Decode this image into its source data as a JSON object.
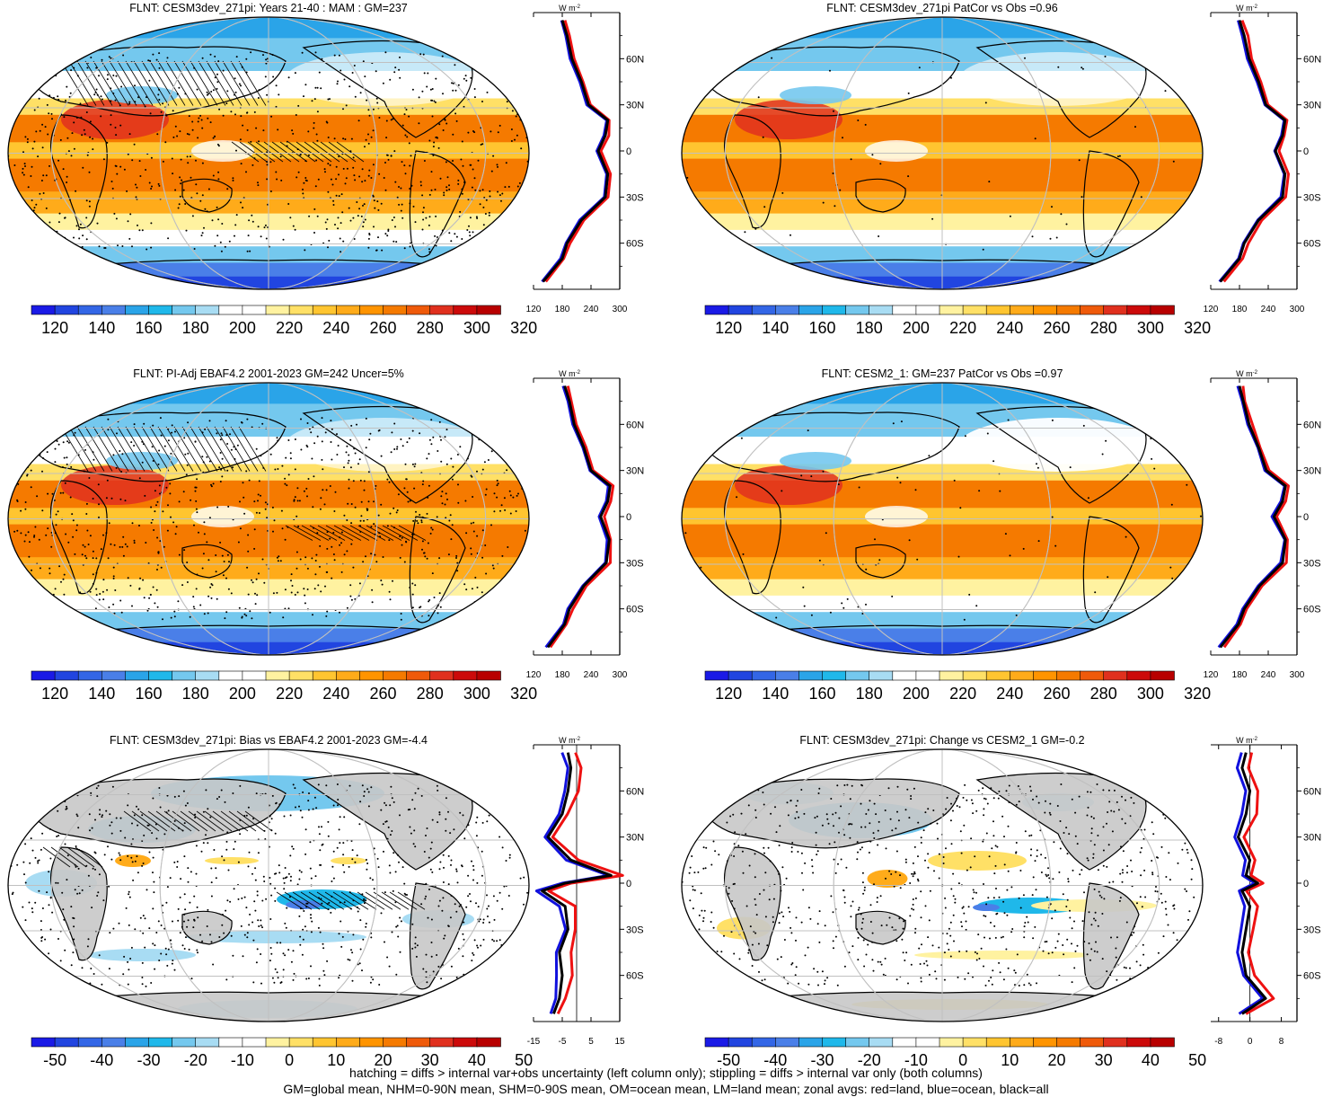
{
  "panels": [
    {
      "title": "FLNT: CESM3dev_271pi: Years 21-40 : MAM : GM=237",
      "colorbar": {
        "ticks": [
          "120",
          "140",
          "160",
          "180",
          "200",
          "220",
          "240",
          "260",
          "280",
          "300",
          "320"
        ],
        "kind": "abs"
      },
      "zonal": {
        "unit": "W m",
        "unit_exp": "-2",
        "x_ticks": [
          "120",
          "180",
          "240",
          "300"
        ],
        "lat_labels": [
          "60N",
          "30N",
          "0",
          "30S",
          "60S"
        ],
        "kind": "abs"
      }
    },
    {
      "title": "FLNT: CESM3dev_271pi PatCor vs Obs =0.96",
      "colorbar": {
        "ticks": [
          "120",
          "140",
          "160",
          "180",
          "200",
          "220",
          "240",
          "260",
          "280",
          "300",
          "320"
        ],
        "kind": "abs"
      },
      "zonal": {
        "unit": "W m",
        "unit_exp": "-2",
        "x_ticks": [
          "120",
          "180",
          "240",
          "300"
        ],
        "lat_labels": [
          "60N",
          "30N",
          "0",
          "30S",
          "60S"
        ],
        "kind": "abs"
      }
    },
    {
      "title": "FLNT: PI-Adj EBAF4.2 2001-2023 GM=242 Uncer=5%",
      "colorbar": {
        "ticks": [
          "120",
          "140",
          "160",
          "180",
          "200",
          "220",
          "240",
          "260",
          "280",
          "300",
          "320"
        ],
        "kind": "abs"
      },
      "zonal": {
        "unit": "W m",
        "unit_exp": "-2",
        "x_ticks": [
          "120",
          "180",
          "240",
          "300"
        ],
        "lat_labels": [
          "60N",
          "30N",
          "0",
          "30S",
          "60S"
        ],
        "kind": "abs"
      }
    },
    {
      "title": "FLNT: CESM2_1: GM=237 PatCor vs Obs =0.97",
      "colorbar": {
        "ticks": [
          "120",
          "140",
          "160",
          "180",
          "200",
          "220",
          "240",
          "260",
          "280",
          "300",
          "320"
        ],
        "kind": "abs"
      },
      "zonal": {
        "unit": "W m",
        "unit_exp": "-2",
        "x_ticks": [
          "120",
          "180",
          "240",
          "300"
        ],
        "lat_labels": [
          "60N",
          "30N",
          "0",
          "30S",
          "60S"
        ],
        "kind": "abs"
      }
    },
    {
      "title": "FLNT: CESM3dev_271pi: Bias vs EBAF4.2 2001-2023 GM=-4.4",
      "colorbar": {
        "ticks": [
          "-50",
          "-40",
          "-30",
          "-20",
          "-10",
          "0",
          "10",
          "20",
          "30",
          "40",
          "50"
        ],
        "kind": "diff"
      },
      "zonal": {
        "unit": "W m",
        "unit_exp": "-2",
        "x_ticks": [
          "-15",
          "-5",
          "5",
          "15"
        ],
        "lat_labels": [
          "60N",
          "30N",
          "0",
          "30S",
          "60S"
        ],
        "kind": "bias"
      }
    },
    {
      "title": "FLNT: CESM3dev_271pi: Change vs CESM2_1 GM=-0.2",
      "colorbar": {
        "ticks": [
          "-50",
          "-40",
          "-30",
          "-20",
          "-10",
          "0",
          "10",
          "20",
          "30",
          "40",
          "50"
        ],
        "kind": "diff"
      },
      "zonal": {
        "unit": "W m",
        "unit_exp": "-2",
        "x_ticks": [
          "-8",
          "0",
          "8"
        ],
        "lat_labels": [
          "60N",
          "30N",
          "0",
          "30S",
          "60S"
        ],
        "kind": "change"
      }
    }
  ],
  "colors": {
    "scale": [
      "#1a1ae6",
      "#2145e0",
      "#3366e6",
      "#4a7fe8",
      "#2aa4e8",
      "#1fb8ea",
      "#74c8ee",
      "#a8dcf3",
      "#ffffff",
      "#ffffff",
      "#fff2a0",
      "#ffe066",
      "#ffc530",
      "#ffab1a",
      "#ff9400",
      "#f57a00",
      "#ef5a0a",
      "#e0301e",
      "#cc0a0a",
      "#b80000"
    ],
    "land": "#c8c8c8",
    "line_land": "#ee1111",
    "line_ocean": "#1111dd",
    "line_all": "#000000"
  },
  "footer": [
    "hatching = diffs > internal var+obs uncertainty (left column only); stippling = diffs > internal var only (both columns)",
    "GM=global mean, NHM=0-90N mean, SHM=0-90S mean, OM=ocean mean, LM=land mean; zonal avgs: red=land, blue=ocean, black=all"
  ],
  "chart_data": [
    {
      "type": "heatmap",
      "title": "FLNT: CESM3dev_271pi: Years 21-40 : MAM : GM=237",
      "colorbar_range": [
        120,
        320
      ],
      "zonal_mean": {
        "lat": [
          -85,
          -70,
          -60,
          -45,
          -30,
          -15,
          0,
          10,
          20,
          30,
          45,
          60,
          75,
          85
        ],
        "series": [
          {
            "values": [
              140,
              180,
              190,
              220,
              270,
              275,
              255,
              270,
              275,
              235,
              220,
              200,
              190,
              180
            ]
          }
        ],
        "xlim": [
          120,
          300
        ]
      }
    },
    {
      "type": "heatmap",
      "title": "FLNT: CESM3dev_271pi PatCor vs Obs =0.96",
      "colorbar_range": [
        120,
        320
      ],
      "zonal_mean": {
        "lat": [
          -85,
          -70,
          -60,
          -45,
          -30,
          -15,
          0,
          10,
          20,
          30,
          45,
          60,
          75,
          85
        ],
        "series": [
          {
            "values": [
              140,
              180,
              190,
              220,
              270,
              275,
              255,
              270,
              275,
              235,
              220,
              200,
              190,
              180
            ]
          }
        ],
        "xlim": [
          120,
          300
        ]
      }
    },
    {
      "type": "heatmap",
      "title": "FLNT: PI-Adj EBAF4.2 2001-2023 GM=242 Uncer=5%",
      "colorbar_range": [
        120,
        320
      ],
      "zonal_mean": {
        "lat": [
          -85,
          -70,
          -60,
          -45,
          -30,
          -15,
          0,
          10,
          20,
          30,
          45,
          60,
          75,
          85
        ],
        "series": [
          {
            "values": [
              150,
              185,
              195,
              225,
              272,
              278,
              260,
              275,
              280,
              240,
              225,
              205,
              195,
              185
            ]
          }
        ],
        "xlim": [
          120,
          300
        ]
      }
    },
    {
      "type": "heatmap",
      "title": "FLNT: CESM2_1: GM=237 PatCor vs Obs =0.97",
      "colorbar_range": [
        120,
        320
      ],
      "zonal_mean": {
        "lat": [
          -85,
          -70,
          -60,
          -45,
          -30,
          -15,
          0,
          10,
          20,
          30,
          45,
          60,
          75,
          85
        ],
        "series": [
          {
            "values": [
              140,
              178,
              190,
              222,
              270,
              276,
              252,
              270,
              276,
              236,
              220,
              200,
              188,
              180
            ]
          }
        ],
        "xlim": [
          120,
          300
        ]
      }
    },
    {
      "type": "heatmap",
      "title": "FLNT: CESM3dev_271pi: Bias vs EBAF4.2 2001-2023 GM=-4.4",
      "colorbar_range": [
        -50,
        50
      ],
      "zonal_mean": {
        "lat": [
          -85,
          -75,
          -60,
          -45,
          -30,
          -15,
          -5,
          0,
          5,
          15,
          30,
          45,
          60,
          75,
          85
        ],
        "series": [
          {
            "values": [
              -8,
              -6,
              -5,
              -6,
              -3,
              -4,
              -12,
              -4,
              12,
              -2,
              -10,
              -5,
              -3,
              -2,
              -3
            ]
          }
        ],
        "xlim": [
          -15,
          15
        ]
      }
    },
    {
      "type": "heatmap",
      "title": "FLNT: CESM3dev_271pi: Change vs CESM2_1 GM=-0.2",
      "colorbar_range": [
        -50,
        50
      ],
      "zonal_mean": {
        "lat": [
          -85,
          -75,
          -60,
          -45,
          -30,
          -15,
          -5,
          0,
          5,
          15,
          30,
          45,
          60,
          75,
          85
        ],
        "series": [
          {
            "values": [
              -2,
              4,
              -1,
              -2,
              -1,
              0,
              -2,
              2,
              -1,
              0,
              -3,
              -1,
              0,
              -2,
              -1
            ]
          }
        ],
        "xlim": [
          -10,
          12
        ]
      }
    }
  ]
}
